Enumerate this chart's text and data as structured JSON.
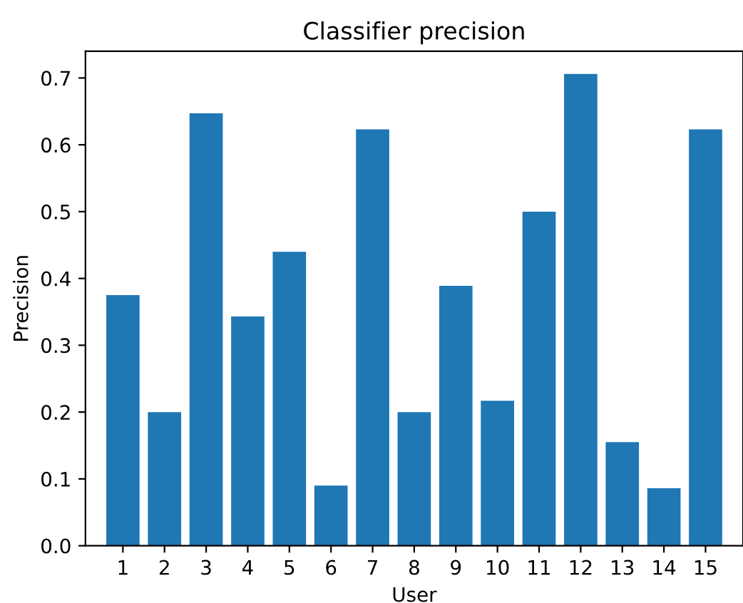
{
  "chart_data": {
    "type": "bar",
    "title": "Classifier precision",
    "xlabel": "User",
    "ylabel": "Precision",
    "categories": [
      "1",
      "2",
      "3",
      "4",
      "5",
      "6",
      "7",
      "8",
      "9",
      "10",
      "11",
      "12",
      "13",
      "14",
      "15"
    ],
    "values": [
      0.375,
      0.2,
      0.647,
      0.343,
      0.44,
      0.09,
      0.623,
      0.2,
      0.389,
      0.217,
      0.5,
      0.706,
      0.155,
      0.086,
      0.623
    ],
    "color": "#1f77b4",
    "ylim": [
      0,
      0.74
    ],
    "yticks": [
      {
        "value": 0,
        "label": "0.0"
      },
      0.1,
      0.2,
      0.3,
      0.4,
      0.5,
      0.6,
      0.7
    ],
    "grid": false
  }
}
